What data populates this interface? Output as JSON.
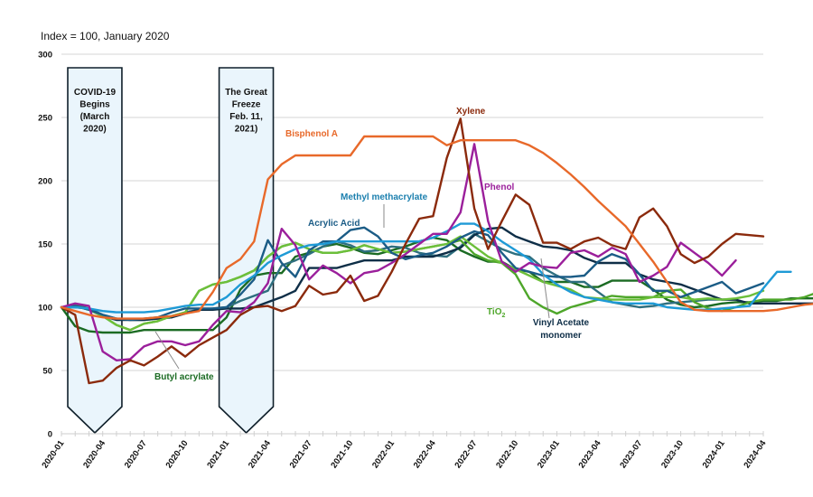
{
  "chart_data": {
    "type": "line",
    "title": "",
    "subtitle": "Index = 100, January 2020",
    "xlabel": "",
    "ylabel": "",
    "ylim": [
      0,
      300
    ],
    "yticks": [
      "0",
      "50",
      "100",
      "150",
      "200",
      "250",
      "300"
    ],
    "ytick_values": [
      0,
      50,
      100,
      150,
      200,
      250,
      300
    ],
    "grid": true,
    "legend": "inline labels",
    "x_start": "2020-01",
    "x_end": "2024-04",
    "xtick_labels": [
      "2020-01",
      "2020-04",
      "2020-07",
      "2020-10",
      "2021-01",
      "2021-04",
      "2021-07",
      "2021-10",
      "2022-01",
      "2022-04",
      "2022-07",
      "2022-10",
      "2023-01",
      "2023-04",
      "2023-07",
      "2023-10",
      "2024-01",
      "2024-04"
    ],
    "annotations": [
      {
        "id": "covid",
        "lines": [
          "COVID-19",
          "Begins",
          "(March",
          "2020)"
        ],
        "start_month": "2020-01",
        "end_month": "2020-05",
        "point_month": "2020-03"
      },
      {
        "id": "freeze",
        "lines": [
          "The Great",
          "Freeze",
          "Feb. 11,",
          "2021)"
        ],
        "start_month": "2020-12",
        "end_month": "2021-04",
        "point_month": "2021-02"
      }
    ],
    "series": [
      {
        "name": "Bisphenol A",
        "label": "Bisphenol A",
        "color": "#E8692A",
        "values": [
          100,
          97,
          94,
          92,
          91,
          91,
          91,
          92,
          93,
          95,
          97,
          112,
          131,
          138,
          152,
          201,
          213,
          220,
          220,
          220,
          220,
          220,
          235,
          235,
          235,
          235,
          235,
          235,
          228,
          232,
          232,
          232,
          232,
          232,
          228,
          222,
          214,
          205,
          195,
          184,
          174,
          164,
          150,
          136,
          120,
          104,
          98,
          97,
          97,
          97,
          97,
          97,
          98,
          100,
          102,
          103
        ]
      },
      {
        "name": "Xylene",
        "label": "Xylene",
        "color": "#8B2A0C",
        "values": [
          100,
          94,
          40,
          42,
          52,
          58,
          54,
          61,
          69,
          61,
          70,
          76,
          82,
          94,
          100,
          101,
          97,
          101,
          117,
          110,
          112,
          125,
          105,
          109,
          128,
          150,
          170,
          172,
          218,
          249,
          178,
          146,
          168,
          189,
          181,
          151,
          151,
          146,
          152,
          155,
          149,
          146,
          171,
          178,
          164,
          142,
          135,
          140,
          150,
          158,
          157,
          156
        ]
      },
      {
        "name": "Phenol",
        "label": "Phenol",
        "color": "#9B1F9B",
        "values": [
          100,
          103,
          101,
          65,
          58,
          59,
          69,
          73,
          73,
          70,
          73,
          86,
          97,
          96,
          104,
          119,
          162,
          149,
          122,
          133,
          127,
          119,
          127,
          129,
          135,
          142,
          150,
          158,
          158,
          175,
          229,
          168,
          136,
          128,
          135,
          132,
          131,
          143,
          145,
          140,
          147,
          142,
          120,
          125,
          132,
          151,
          143,
          135,
          125,
          137
        ]
      },
      {
        "name": "Methyl methacrylate",
        "label": "Methyl methacrylate",
        "color": "#1E9AD6",
        "values": [
          100,
          100,
          99,
          97,
          96,
          96,
          96,
          97,
          99,
          101,
          102,
          102,
          108,
          118,
          125,
          135,
          141,
          146,
          149,
          150,
          152,
          152,
          152,
          152,
          152,
          152,
          152,
          155,
          160,
          166,
          166,
          160,
          152,
          145,
          138,
          126,
          118,
          112,
          108,
          106,
          104,
          103,
          103,
          103,
          100,
          99,
          98,
          98,
          99,
          100,
          101,
          115,
          128,
          128
        ]
      },
      {
        "name": "Acrylic Acid",
        "label": "Acrylic Acid",
        "color": "#1B5C86",
        "values": [
          100,
          101,
          98,
          94,
          91,
          90,
          91,
          92,
          96,
          99,
          99,
          99,
          100,
          110,
          122,
          153,
          135,
          124,
          145,
          152,
          152,
          161,
          163,
          156,
          143,
          138,
          141,
          143,
          148,
          155,
          160,
          157,
          143,
          131,
          128,
          125,
          124,
          124,
          125,
          136,
          142,
          138,
          126,
          113,
          113,
          108,
          112,
          116,
          120,
          111,
          115,
          119
        ]
      },
      {
        "name": "Butyl acrylate",
        "label": "Butyl acrylate",
        "color": "#6CBF3A",
        "values": [
          100,
          101,
          98,
          93,
          86,
          82,
          87,
          89,
          93,
          96,
          113,
          118,
          120,
          124,
          129,
          140,
          148,
          151,
          146,
          143,
          143,
          145,
          149,
          146,
          143,
          144,
          146,
          148,
          150,
          156,
          148,
          140,
          135,
          130,
          125,
          120,
          117,
          114,
          108,
          107,
          106,
          106,
          106,
          108,
          108,
          108,
          106,
          107,
          106,
          107,
          109,
          113
        ]
      },
      {
        "name": "TiO2",
        "label": "TiO",
        "label_sub": "2",
        "color": "#4EA62A",
        "values": [
          100,
          101,
          98,
          93,
          86,
          82,
          87,
          89,
          93,
          96,
          113,
          118,
          120,
          124,
          129,
          140,
          148,
          151,
          146,
          143,
          143,
          145,
          149,
          146,
          143,
          144,
          146,
          148,
          150,
          153,
          142,
          137,
          135,
          126,
          107,
          100,
          95,
          100,
          103,
          106,
          109,
          108,
          108,
          108,
          113,
          114,
          104,
          99,
          97,
          100,
          104,
          106,
          106,
          106,
          108,
          112
        ]
      },
      {
        "name": "Vinyl Acetate monomer",
        "label": "Vinyl Acetate monomer",
        "color": "#0E2E47",
        "values": [
          100,
          100,
          99,
          93,
          90,
          90,
          90,
          91,
          92,
          95,
          98,
          98,
          99,
          99,
          100,
          104,
          108,
          113,
          131,
          131,
          131,
          134,
          137,
          137,
          137,
          140,
          140,
          140,
          143,
          147,
          157,
          162,
          163,
          156,
          152,
          148,
          147,
          145,
          139,
          135,
          135,
          135,
          126,
          122,
          120,
          118,
          114,
          110,
          106,
          106,
          103,
          103,
          103,
          103,
          103,
          103
        ]
      },
      {
        "name": "Series teal-dark",
        "label": "",
        "color": "#2E6F7F",
        "values": [
          100,
          102,
          99,
          94,
          91,
          90,
          90,
          91,
          92,
          96,
          98,
          99,
          100,
          105,
          109,
          113,
          133,
          137,
          142,
          148,
          152,
          149,
          144,
          145,
          148,
          147,
          143,
          141,
          140,
          148,
          158,
          152,
          146,
          142,
          140,
          131,
          125,
          120,
          120,
          112,
          104,
          102,
          100,
          101,
          103,
          104,
          105,
          106,
          106,
          106
        ]
      },
      {
        "name": "Series dark-green",
        "label": "",
        "color": "#1B6B23",
        "values": [
          100,
          85,
          81,
          80,
          80,
          80,
          82,
          82,
          82,
          82,
          82,
          82,
          92,
          114,
          125,
          127,
          127,
          140,
          143,
          148,
          150,
          147,
          143,
          142,
          145,
          148,
          152,
          155,
          153,
          145,
          140,
          136,
          136,
          130,
          128,
          120,
          120,
          120,
          116,
          116,
          121,
          121,
          121,
          114,
          106,
          102,
          100,
          101,
          103,
          104,
          104,
          105,
          105,
          107,
          107,
          107
        ]
      }
    ]
  },
  "labels": {
    "bisphenol": "Bisphenol A",
    "xylene": "Xylene",
    "phenol": "Phenol",
    "mma": "Methyl methacrylate",
    "acrylic": "Acrylic Acid",
    "butyl": "Butyl acrylate",
    "tio": "TiO",
    "tio_sub": "2",
    "vam1": "Vinyl Acetate",
    "vam2": "monomer"
  }
}
